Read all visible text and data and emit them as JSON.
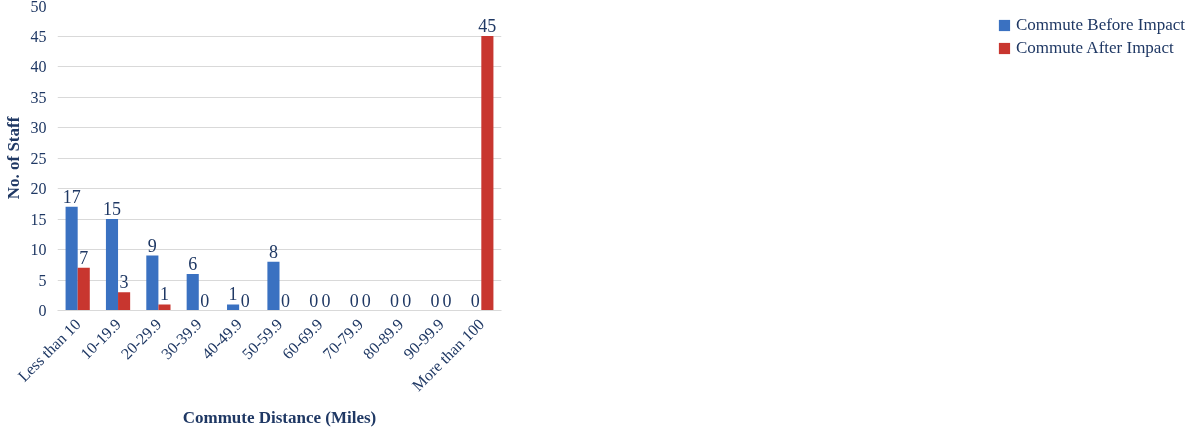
{
  "chart_data": {
    "type": "bar",
    "xlabel": "Commute Distance (Miles)",
    "ylabel": "No. of Staff",
    "categories": [
      "Less than 10",
      "10-19.9",
      "20-29.9",
      "30-39.9",
      "40-49.9",
      "50-59.9",
      "60-69.9",
      "70-79.9",
      "80-89.9",
      "90-99.9",
      "More than 100"
    ],
    "series": [
      {
        "name": "Commute Before Impact",
        "color": "#3a71c1",
        "values": [
          17,
          15,
          9,
          6,
          1,
          8,
          0,
          0,
          0,
          0,
          0
        ]
      },
      {
        "name": "Commute After Impact",
        "color": "#c8362f",
        "values": [
          7,
          3,
          1,
          0,
          0,
          0,
          0,
          0,
          0,
          0,
          45
        ]
      }
    ],
    "ylim": [
      0,
      50
    ],
    "yticks": [
      0,
      5,
      10,
      15,
      20,
      25,
      30,
      35,
      40,
      45,
      50
    ],
    "grid": "y",
    "legend": "right",
    "data_labels": true
  }
}
